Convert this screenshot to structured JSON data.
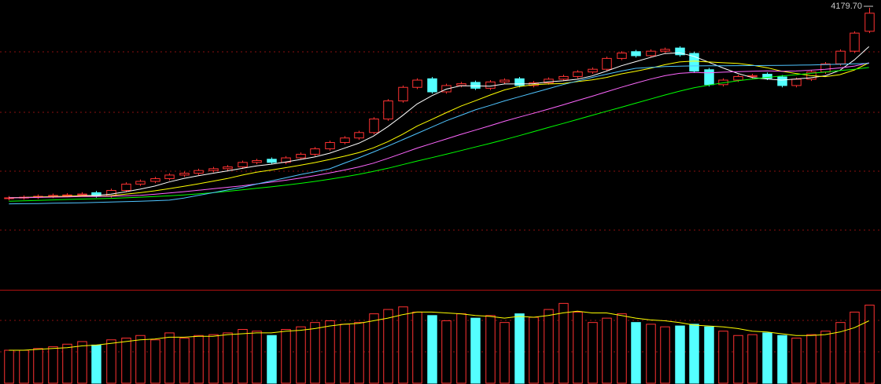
{
  "chart_data": [
    {
      "type": "candlestick",
      "up_color": "#ff3232",
      "down_color": "#54ffff",
      "ylim": [
        1070,
        4266
      ],
      "max_label": "4179.70",
      "open": [
        2070,
        2078,
        2085,
        2095,
        2105,
        2110,
        2135,
        2100,
        2160,
        2230,
        2260,
        2290,
        2330,
        2350,
        2380,
        2400,
        2420,
        2470,
        2505,
        2470,
        2520,
        2560,
        2620,
        2690,
        2740,
        2800,
        2950,
        3150,
        3300,
        3395,
        3250,
        3320,
        3355,
        3290,
        3360,
        3395,
        3320,
        3350,
        3390,
        3420,
        3470,
        3500,
        3620,
        3695,
        3650,
        3700,
        3735,
        3675,
        3495,
        3330,
        3380,
        3420,
        3445,
        3415,
        3320,
        3390,
        3470,
        3560,
        3700,
        3920
      ],
      "high": [
        2098,
        2105,
        2115,
        2125,
        2130,
        2140,
        2155,
        2180,
        2250,
        2280,
        2310,
        2350,
        2370,
        2400,
        2420,
        2440,
        2490,
        2510,
        2525,
        2540,
        2580,
        2640,
        2710,
        2760,
        2820,
        2970,
        3170,
        3320,
        3400,
        3415,
        3340,
        3360,
        3375,
        3380,
        3400,
        3415,
        3370,
        3410,
        3440,
        3490,
        3520,
        3640,
        3700,
        3715,
        3720,
        3740,
        3755,
        3695,
        3515,
        3400,
        3440,
        3450,
        3465,
        3435,
        3410,
        3490,
        3580,
        3720,
        3920,
        4179.7
      ],
      "low": [
        2050,
        2058,
        2065,
        2075,
        2085,
        2090,
        2080,
        2080,
        2140,
        2210,
        2240,
        2270,
        2310,
        2330,
        2360,
        2380,
        2400,
        2450,
        2450,
        2450,
        2500,
        2540,
        2600,
        2670,
        2720,
        2780,
        2930,
        3130,
        3280,
        3230,
        3230,
        3300,
        3270,
        3270,
        3340,
        3300,
        3300,
        3330,
        3370,
        3400,
        3450,
        3480,
        3600,
        3630,
        3630,
        3680,
        3640,
        3460,
        3310,
        3310,
        3360,
        3400,
        3380,
        3300,
        3300,
        3370,
        3450,
        3540,
        3680,
        3900
      ],
      "close": [
        2078,
        2085,
        2095,
        2105,
        2110,
        2120,
        2100,
        2160,
        2230,
        2260,
        2290,
        2330,
        2350,
        2380,
        2400,
        2420,
        2470,
        2490,
        2470,
        2520,
        2560,
        2620,
        2690,
        2740,
        2800,
        2950,
        3150,
        3300,
        3380,
        3250,
        3320,
        3340,
        3290,
        3360,
        3380,
        3320,
        3350,
        3390,
        3420,
        3470,
        3500,
        3620,
        3680,
        3650,
        3700,
        3720,
        3660,
        3480,
        3330,
        3380,
        3420,
        3430,
        3400,
        3320,
        3390,
        3470,
        3560,
        3700,
        3900,
        4120
      ],
      "lines": [
        {
          "color": "#ffffff",
          "values": [
            2078,
            2082,
            2086,
            2091,
            2095,
            2103,
            2106,
            2119,
            2144,
            2174,
            2208,
            2254,
            2292,
            2322,
            2350,
            2376,
            2404,
            2432,
            2450,
            2474,
            2502,
            2532,
            2572,
            2626,
            2682,
            2760,
            2866,
            2988,
            3116,
            3206,
            3280,
            3318,
            3316,
            3312,
            3338,
            3338,
            3340,
            3360,
            3372,
            3390,
            3426,
            3480,
            3538,
            3584,
            3630,
            3674,
            3682,
            3642,
            3578,
            3514,
            3454,
            3408,
            3392,
            3380,
            3392,
            3406,
            3428,
            3488,
            3604,
            3750
          ]
        },
        {
          "color": "#ffff00",
          "values": [
            2078,
            2082,
            2086,
            2091,
            2095,
            2099,
            2094,
            2103,
            2118,
            2135,
            2156,
            2180,
            2206,
            2233,
            2262,
            2292,
            2329,
            2362,
            2386,
            2412,
            2439,
            2468,
            2502,
            2538,
            2578,
            2631,
            2699,
            2780,
            2871,
            2944,
            3020,
            3092,
            3152,
            3214,
            3272,
            3309,
            3329,
            3338,
            3342,
            3364,
            3382,
            3410,
            3449,
            3478,
            3510,
            3550,
            3581,
            3590,
            3581,
            3572,
            3564,
            3545,
            3517,
            3479,
            3453,
            3430,
            3418,
            3440,
            3492,
            3571
          ]
        },
        {
          "color": "#ff66ff",
          "values": [
            2078,
            2080,
            2083,
            2086,
            2089,
            2092,
            2093,
            2096,
            2100,
            2105,
            2117,
            2131,
            2146,
            2162,
            2178,
            2195,
            2211,
            2232,
            2252,
            2273,
            2297,
            2324,
            2354,
            2385,
            2420,
            2461,
            2514,
            2571,
            2628,
            2678,
            2729,
            2780,
            2827,
            2876,
            2925,
            2970,
            3014,
            3059,
            3106,
            3154,
            3201,
            3251,
            3300,
            3346,
            3391,
            3429,
            3455,
            3464,
            3461,
            3468,
            3473,
            3477,
            3483,
            3478,
            3481,
            3490,
            3499,
            3515,
            3536,
            3571
          ]
        },
        {
          "color": "#00ff00",
          "values": [
            2040,
            2045,
            2050,
            2055,
            2060,
            2064,
            2068,
            2072,
            2078,
            2085,
            2092,
            2100,
            2110,
            2122,
            2135,
            2150,
            2166,
            2183,
            2200,
            2218,
            2238,
            2260,
            2284,
            2310,
            2338,
            2370,
            2405,
            2445,
            2485,
            2522,
            2560,
            2600,
            2640,
            2680,
            2722,
            2765,
            2810,
            2856,
            2900,
            2945,
            2990,
            3035,
            3080,
            3125,
            3170,
            3215,
            3258,
            3295,
            3325,
            3350,
            3372,
            3392,
            3410,
            3425,
            3440,
            3455,
            3470,
            3485,
            3500,
            3520
          ]
        },
        {
          "color": "#4fc4ff",
          "values": [
            2011,
            2013,
            2015,
            2018,
            2021,
            2024,
            2027,
            2031,
            2036,
            2041,
            2046,
            2052,
            2075,
            2105,
            2135,
            2165,
            2195,
            2230,
            2265,
            2300,
            2335,
            2367,
            2399,
            2460,
            2520,
            2585,
            2650,
            2720,
            2790,
            2860,
            2930,
            2990,
            3051,
            3100,
            3150,
            3195,
            3240,
            3285,
            3330,
            3370,
            3410,
            3445,
            3480,
            3510,
            3520,
            3530,
            3535,
            3537,
            3538,
            3539,
            3540,
            3541,
            3542,
            3543,
            3545,
            3548,
            3552,
            3556,
            3560,
            3565
          ]
        }
      ]
    },
    {
      "type": "bar",
      "ylim": [
        0,
        105
      ],
      "values": [
        38,
        38,
        40,
        42,
        45,
        48,
        44,
        50,
        52,
        55,
        50,
        58,
        52,
        55,
        56,
        58,
        62,
        60,
        55,
        62,
        65,
        70,
        72,
        68,
        70,
        80,
        85,
        88,
        82,
        78,
        72,
        80,
        75,
        78,
        70,
        80,
        76,
        85,
        92,
        82,
        70,
        75,
        80,
        70,
        68,
        65,
        66,
        68,
        65,
        60,
        55,
        56,
        58,
        55,
        52,
        56,
        60,
        70,
        82,
        90
      ],
      "lines": [
        {
          "color": "#ffff00",
          "values": [
            38,
            38,
            39,
            40,
            41,
            43,
            44,
            46,
            48,
            50,
            51,
            53,
            53,
            54,
            54,
            56,
            57,
            58,
            58,
            60,
            61,
            63,
            66,
            68,
            69,
            72,
            75,
            79,
            82,
            82,
            81,
            80,
            78,
            77,
            75,
            77,
            76,
            78,
            81,
            83,
            81,
            81,
            78,
            75,
            73,
            72,
            70,
            67,
            66,
            65,
            63,
            60,
            59,
            57,
            55,
            55,
            56,
            59,
            64,
            72
          ]
        }
      ]
    }
  ]
}
